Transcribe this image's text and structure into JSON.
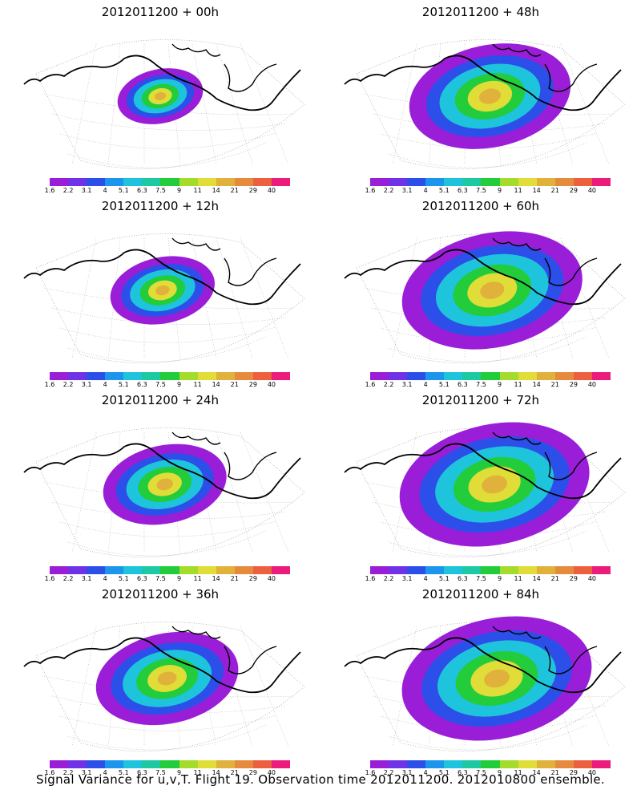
{
  "panels": [
    {
      "title": "2012011200 + 00h",
      "lead": 0
    },
    {
      "title": "2012011200 + 48h",
      "lead": 48
    },
    {
      "title": "2012011200 + 12h",
      "lead": 12
    },
    {
      "title": "2012011200 + 60h",
      "lead": 60
    },
    {
      "title": "2012011200 + 24h",
      "lead": 24
    },
    {
      "title": "2012011200 + 72h",
      "lead": 72
    },
    {
      "title": "2012011200 + 36h",
      "lead": 36
    },
    {
      "title": "2012011200 + 84h",
      "lead": 84
    }
  ],
  "colorbar": {
    "labels": [
      "1.6",
      "2.2",
      "3.1",
      "4",
      "5.1",
      "6.3",
      "7.5",
      "9",
      "11",
      "14",
      "21",
      "29",
      "40"
    ],
    "colors": [
      "#9a1ed8",
      "#6f32e6",
      "#2b4fe8",
      "#1b96ec",
      "#1ec4dc",
      "#1cc9a2",
      "#22cc3a",
      "#a5dc2b",
      "#e0dc38",
      "#e0b23c",
      "#e68b3e",
      "#ec5f3f",
      "#ec1c7c"
    ]
  },
  "caption": "Signal Variance for u,v,T. Flight 19. Observation time 2012011200. 2012010800 ensemble."
}
